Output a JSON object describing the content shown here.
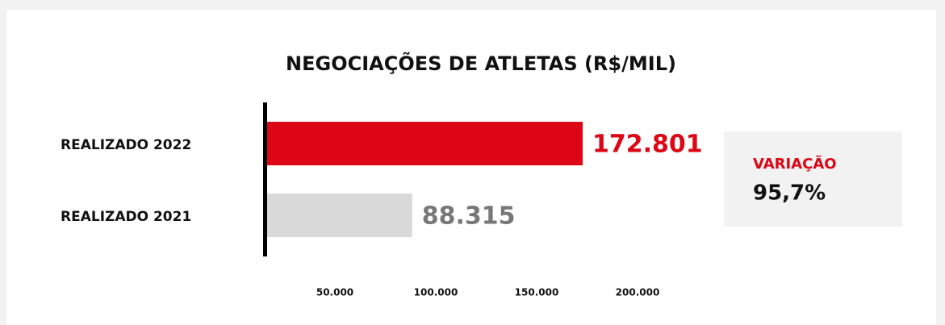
{
  "chart_data": {
    "type": "hbar",
    "title": "NEGOCIAÇÕES DE ATLETAS (R$/MIL)",
    "categories": [
      "REALIZADO 2022",
      "REALIZADO 2021"
    ],
    "values": [
      172801,
      88315
    ],
    "value_labels": [
      "172.801",
      "88.315"
    ],
    "colors": [
      "#dc0615",
      "#d9d9d9"
    ],
    "label_colors": [
      "#dc0615",
      "#777777"
    ],
    "xlim": [
      16000,
      200000
    ],
    "xticks": [
      {
        "value": 50000,
        "label": "50.000"
      },
      {
        "value": 100000,
        "label": "100.000"
      },
      {
        "value": 150000,
        "label": "150.000"
      },
      {
        "value": 200000,
        "label": "200.000"
      }
    ],
    "annotation": {
      "label": "VARIAÇÃO",
      "value": "95,7%",
      "label_color": "#dc0615"
    }
  }
}
